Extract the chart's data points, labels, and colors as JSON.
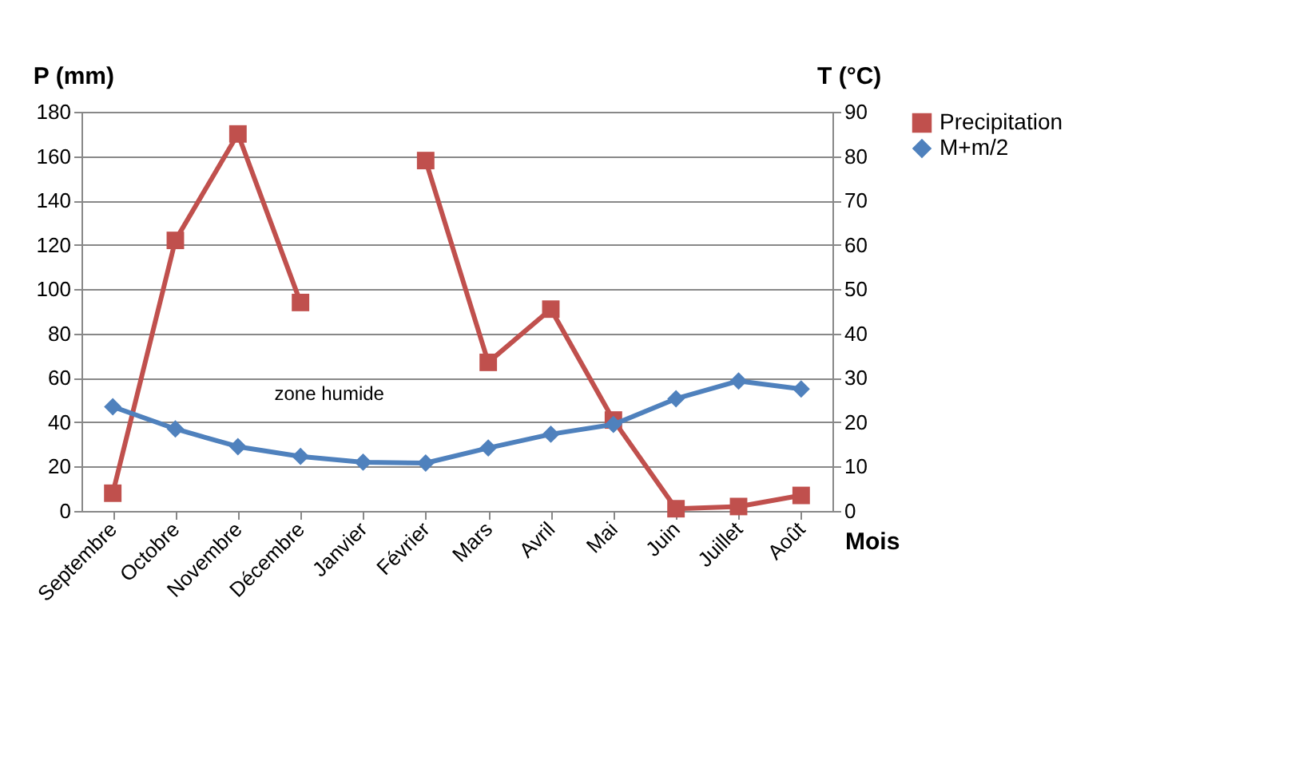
{
  "chart_data": {
    "type": "line",
    "xlabel": "Mois",
    "ylabel": "P (mm)",
    "y2label": "T (°C)",
    "categories": [
      "Septembre",
      "Octobre",
      "Novembre",
      "Décembre",
      "Janvier",
      "Février",
      "Mars",
      "Avril",
      "Mai",
      "Juin",
      "Juillet",
      "Août"
    ],
    "series": [
      {
        "name": "Precipitation",
        "color": "#c0504d",
        "marker": "square",
        "values": [
          8,
          122,
          170,
          94,
          null,
          158,
          67,
          91,
          41,
          1,
          2,
          7
        ]
      },
      {
        "name": "M+m/2",
        "color": "#4f81bd",
        "marker": "diamond",
        "axis": "y2",
        "values": [
          23.5,
          18.5,
          14.5,
          12.3,
          11,
          10.8,
          14.2,
          17.3,
          19.5,
          25.3,
          29.3,
          27.5
        ]
      }
    ],
    "ylim": [
      0,
      180
    ],
    "yticks": [
      0,
      20,
      40,
      60,
      80,
      100,
      120,
      140,
      160,
      180
    ],
    "y2lim": [
      0,
      90
    ],
    "y2ticks": [
      0,
      10,
      20,
      30,
      40,
      50,
      60,
      70,
      80,
      90
    ],
    "grid": "y",
    "legend": "right",
    "line_style": "solid",
    "annotations": [
      "zone humide"
    ]
  }
}
